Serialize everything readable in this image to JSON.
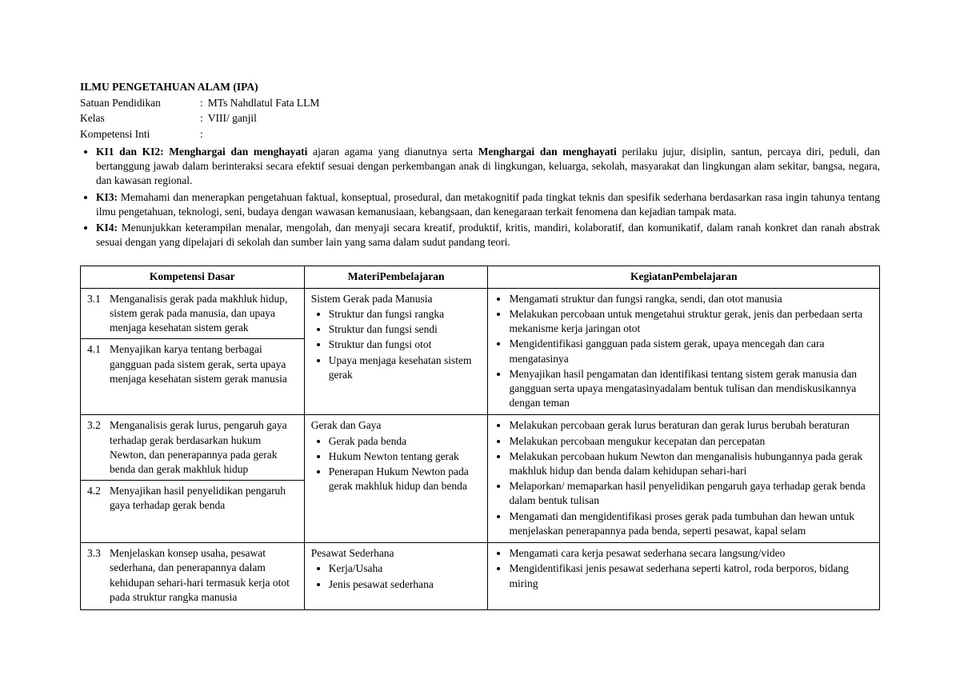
{
  "header": {
    "title": "ILMU PENGETAHUAN ALAM (IPA)",
    "meta": [
      {
        "label": "Satuan Pendidikan",
        "value": "MTs Nahdlatul Fata LLM"
      },
      {
        "label": "Kelas",
        "value": "VIII/ ganjil"
      },
      {
        "label": "Kompetensi Inti",
        "value": ""
      }
    ]
  },
  "ki": [
    {
      "prefix": "KI1 dan KI2: Menghargai dan menghayati",
      "mid1": " ajaran agama yang dianutnya serta ",
      "bold2": "Menghargai dan menghayati",
      "text": " perilaku jujur, disiplin, santun, percaya diri, peduli, dan bertanggung jawab dalam berinteraksi secara efektif sesuai dengan perkembangan anak di lingkungan, keluarga, sekolah, masyarakat dan lingkungan alam sekitar, bangsa, negara, dan kawasan regional."
    },
    {
      "prefix": "KI3:",
      "mid1": " Memahami dan menerapkan pengetahuan faktual, konseptual, prosedural, dan metakognitif pada tingkat teknis dan spesifik sederhana berdasarkan rasa ingin tahunya tentang ilmu pengetahuan, teknologi, seni, budaya dengan wawasan kemanusiaan, kebangsaan, dan kenegaraan terkait fenomena dan kejadian tampak mata.",
      "bold2": "",
      "text": ""
    },
    {
      "prefix": "KI4:",
      "mid1": " Menunjukkan keterampilan menalar, mengolah, dan menyaji secara kreatif, produktif, kritis, mandiri, kolaboratif, dan komunikatif, dalam ranah konkret dan ranah abstrak sesuai dengan yang dipelajari di sekolah dan sumber lain yang sama dalam sudut pandang teori.",
      "bold2": "",
      "text": ""
    }
  ],
  "table": {
    "headers": {
      "kd": "Kompetensi Dasar",
      "mat": "MateriPembelajaran",
      "keg": "KegiatanPembelajaran"
    },
    "rows": [
      {
        "kd": [
          {
            "num": "3.1",
            "text": "Menganalisis gerak pada makhluk hidup, sistem gerak pada manusia, dan upaya menjaga kesehatan sistem gerak",
            "sep": false
          },
          {
            "num": "4.1",
            "text": "Menyajikan karya tentang berbagai gangguan pada sistem gerak, serta upaya menjaga kesehatan sistem gerak manusia",
            "sep": true
          }
        ],
        "mat": {
          "title": "Sistem Gerak pada Manusia",
          "items": [
            "Struktur dan fungsi rangka",
            "Struktur dan fungsi sendi",
            "Struktur dan fungsi otot",
            "Upaya menjaga kesehatan sistem gerak"
          ]
        },
        "keg": [
          "Mengamati struktur dan fungsi rangka, sendi, dan otot manusia",
          "Melakukan percobaan untuk mengetahui struktur gerak, jenis dan perbedaan serta mekanisme kerja jaringan otot",
          "Mengidentifikasi gangguan pada sistem gerak, upaya mencegah dan cara mengatasinya",
          "Menyajikan hasil pengamatan dan identifikasi tentang sistem gerak manusia dan gangguan serta upaya mengatasinyadalam bentuk tulisan dan mendiskusikannya dengan teman"
        ]
      },
      {
        "kd": [
          {
            "num": "3.2",
            "text": "Menganalisis gerak lurus, pengaruh gaya terhadap gerak berdasarkan hukum Newton, dan penerapannya pada gerak benda dan gerak makhluk hidup",
            "sep": false
          },
          {
            "num": "4.2",
            "text": "Menyajikan hasil penyelidikan pengaruh gaya terhadap gerak benda",
            "sep": true
          }
        ],
        "mat": {
          "title": "Gerak dan Gaya",
          "items": [
            "Gerak pada benda",
            "Hukum Newton tentang gerak",
            "Penerapan Hukum Newton pada gerak makhluk hidup dan benda"
          ]
        },
        "keg": [
          "Melakukan percobaan gerak lurus beraturan dan gerak lurus berubah beraturan",
          "Melakukan percobaan mengukur kecepatan dan percepatan",
          "Melakukan percobaan hukum Newton dan menganalisis hubungannya pada gerak makhluk hidup dan benda dalam kehidupan sehari-hari",
          "Melaporkan/ memaparkan hasil penyelidikan pengaruh gaya terhadap gerak benda dalam bentuk tulisan",
          "Mengamati dan mengidentifikasi proses gerak pada tumbuhan dan hewan untuk menjelaskan penerapannya pada benda, seperti pesawat, kapal selam"
        ]
      },
      {
        "kd": [
          {
            "num": "3.3",
            "text": "Menjelaskan konsep usaha, pesawat sederhana, dan penerapannya dalam kehidupan sehari-hari termasuk kerja otot pada struktur rangka manusia",
            "sep": false
          }
        ],
        "mat": {
          "title": "Pesawat Sederhana",
          "items": [
            "Kerja/Usaha",
            "Jenis pesawat sederhana"
          ]
        },
        "keg": [
          "Mengamati cara kerja pesawat sederhana secara langsung/video",
          "Mengidentifikasi jenis pesawat sederhana seperti katrol, roda berporos, bidang miring"
        ]
      }
    ]
  }
}
